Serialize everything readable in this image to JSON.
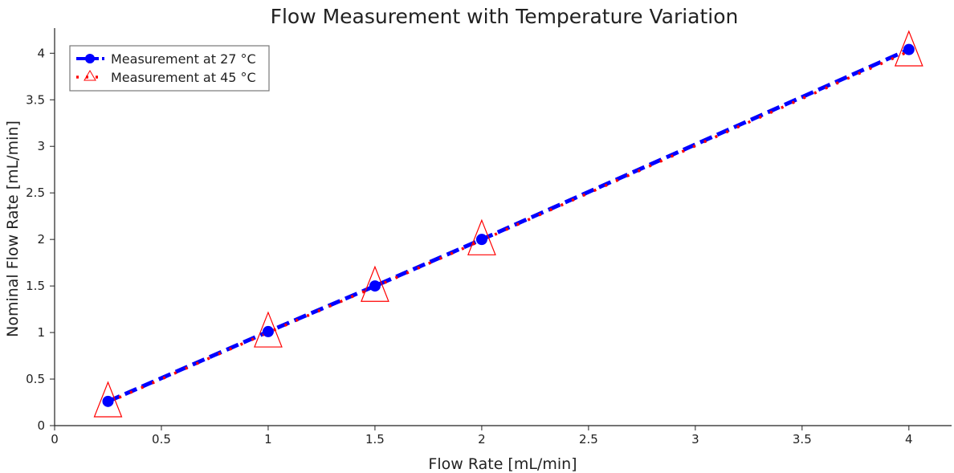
{
  "chart_data": {
    "type": "line",
    "title": "Flow Measurement with Temperature Variation",
    "xlabel": "Flow Rate [mL/min]",
    "ylabel": "Nominal Flow Rate [mL/min]",
    "xlim": [
      0,
      4.2
    ],
    "ylim": [
      0,
      4.27
    ],
    "xticks": [
      "0",
      "0.5",
      "1",
      "1.5",
      "2",
      "2.5",
      "3",
      "3.5",
      "4"
    ],
    "yticks": [
      "0",
      "0.5",
      "1",
      "1.5",
      "2",
      "2.5",
      "3",
      "3.5",
      "4"
    ],
    "grid": false,
    "legend_position": "top-left",
    "series": [
      {
        "name": "Measurement at 27 °C",
        "color": "#0000ff",
        "line": "dashed",
        "marker": "circle",
        "x": [
          0.25,
          1,
          1.5,
          2,
          4
        ],
        "y": [
          0.26,
          1.01,
          1.5,
          2.0,
          4.04
        ]
      },
      {
        "name": "Measurement at 45 °C",
        "color": "#ff0000",
        "line": "dotted",
        "marker": "triangle",
        "x": [
          0.25,
          1,
          1.5,
          2,
          4
        ],
        "y": [
          0.25,
          1.0,
          1.49,
          1.99,
          4.02
        ]
      }
    ]
  }
}
